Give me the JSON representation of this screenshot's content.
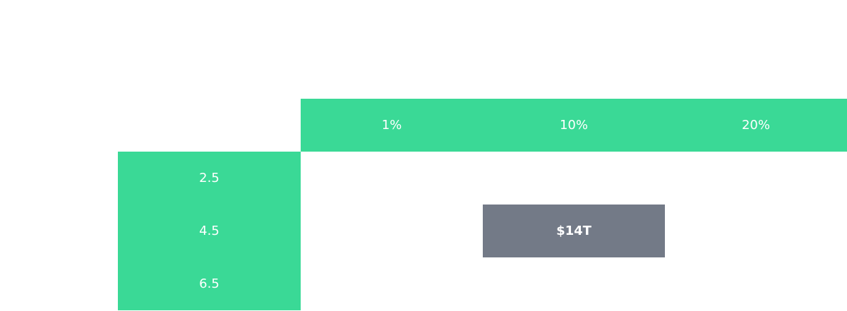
{
  "table": {
    "columns": [
      "1%",
      "10%",
      "20%"
    ],
    "rows": [
      {
        "label": "2.5",
        "cells": [
          null,
          null,
          null
        ]
      },
      {
        "label": "4.5",
        "cells": [
          null,
          "$14T",
          null
        ]
      },
      {
        "label": "6.5",
        "cells": [
          null,
          null,
          null
        ]
      }
    ]
  }
}
